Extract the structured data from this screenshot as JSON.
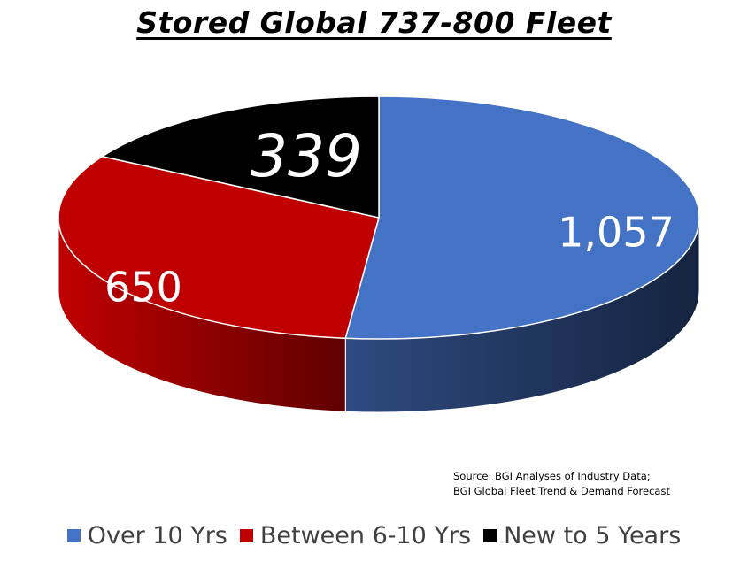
{
  "chart_data": {
    "type": "pie",
    "title": "Stored Global 737-800 Fleet",
    "categories": [
      "Over 10 Yrs",
      "Between 6-10 Yrs",
      "New to 5 Years"
    ],
    "values": [
      1057,
      650,
      339
    ],
    "data_labels": [
      "1,057",
      "650",
      "339"
    ],
    "colors": [
      "#4472C4",
      "#C00000",
      "#000000"
    ],
    "legend_position": "bottom",
    "style": "3d"
  },
  "source_note": {
    "line1": "Source: BGI Analyses of Industry Data;",
    "line2": "BGI Global Fleet Trend & Demand Forecast"
  }
}
